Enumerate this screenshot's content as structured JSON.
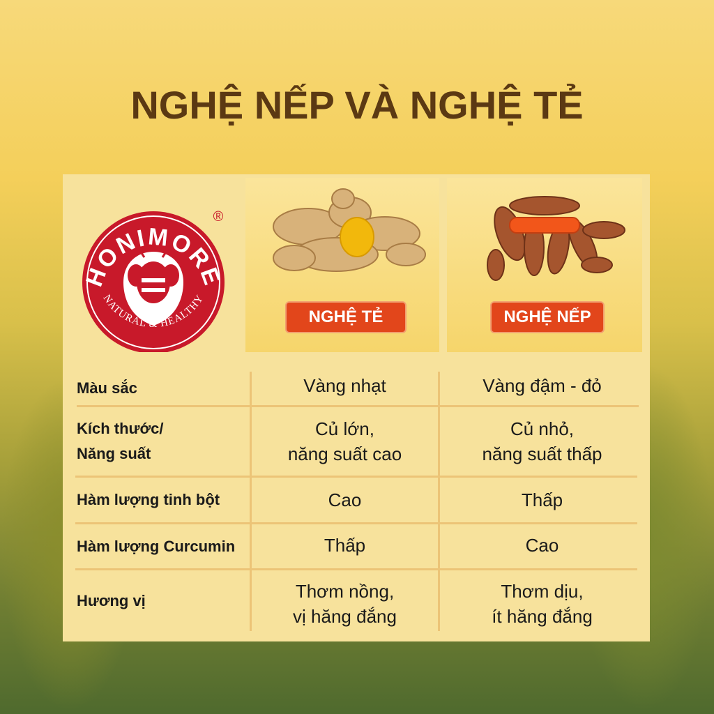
{
  "title": "NGHỆ NẾP VÀ NGHỆ TẺ",
  "logo": {
    "brand": "HONIMORE",
    "tagline": "NATURAL & HEALTHY",
    "registered": "®",
    "color": "#c8192a"
  },
  "columns": [
    {
      "label": "NGHỆ TẺ",
      "image": "ginger-like-pale-turmeric"
    },
    {
      "label": "NGHỆ NẾP",
      "image": "dark-orange-turmeric"
    }
  ],
  "rows": [
    {
      "label": "Màu sắc",
      "te": "Vàng nhạt",
      "nep": "Vàng đậm - đỏ"
    },
    {
      "label": "Kích thước/\nNăng suất",
      "te": "Củ lớn,\nnăng suất cao",
      "nep": "Củ nhỏ,\nnăng suất thấp"
    },
    {
      "label": "Hàm lượng tinh bột",
      "te": "Cao",
      "nep": "Thấp"
    },
    {
      "label": "Hàm lượng Curcumin",
      "te": "Thấp",
      "nep": "Cao"
    },
    {
      "label": "Hương vị",
      "te": "Thơm nồng,\nvị hăng đắng",
      "nep": "Thơm dịu,\nít hăng đắng"
    }
  ],
  "colors": {
    "title": "#5b3913",
    "panel": "#f7e29c",
    "button": "#e2461b",
    "divider": "#ecc477"
  }
}
